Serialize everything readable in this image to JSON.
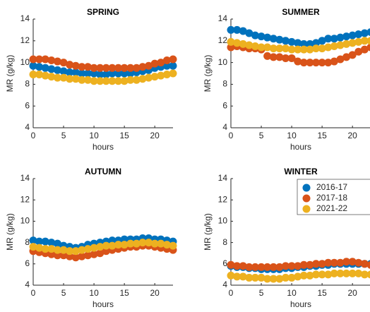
{
  "chart_data": [
    {
      "type": "scatter",
      "title": "SPRING",
      "xlabel": "hours",
      "ylabel": "MR (g/kg)",
      "x": [
        0,
        1,
        2,
        3,
        4,
        5,
        6,
        7,
        8,
        9,
        10,
        11,
        12,
        13,
        14,
        15,
        16,
        17,
        18,
        19,
        20,
        21,
        22,
        23
      ],
      "xlim": [
        0,
        23
      ],
      "ylim": [
        4,
        14
      ],
      "xticks": [
        0,
        5,
        10,
        15,
        20
      ],
      "yticks": [
        4,
        6,
        8,
        10,
        12,
        14
      ],
      "series": [
        {
          "color": "#0072BD",
          "values": [
            9.7,
            9.6,
            9.5,
            9.4,
            9.3,
            9.2,
            9.1,
            9.1,
            9.0,
            9.0,
            9.0,
            8.9,
            8.9,
            9.0,
            9.0,
            9.0,
            9.0,
            9.1,
            9.2,
            9.3,
            9.5,
            9.6,
            9.7,
            9.7
          ]
        },
        {
          "color": "#D95319",
          "values": [
            10.3,
            10.3,
            10.3,
            10.2,
            10.1,
            10.0,
            9.8,
            9.7,
            9.6,
            9.6,
            9.5,
            9.5,
            9.5,
            9.5,
            9.5,
            9.5,
            9.5,
            9.5,
            9.6,
            9.7,
            9.9,
            10.0,
            10.2,
            10.3
          ]
        },
        {
          "color": "#EDB120",
          "values": [
            8.9,
            8.9,
            8.8,
            8.7,
            8.6,
            8.6,
            8.5,
            8.5,
            8.4,
            8.4,
            8.3,
            8.3,
            8.3,
            8.3,
            8.3,
            8.3,
            8.4,
            8.4,
            8.5,
            8.6,
            8.7,
            8.8,
            8.9,
            9.0
          ]
        }
      ]
    },
    {
      "type": "scatter",
      "title": "SUMMER",
      "xlabel": "hours",
      "ylabel": "MR (g/kg)",
      "x": [
        0,
        1,
        2,
        3,
        4,
        5,
        6,
        7,
        8,
        9,
        10,
        11,
        12,
        13,
        14,
        15,
        16,
        17,
        18,
        19,
        20,
        21,
        22,
        23
      ],
      "xlim": [
        0,
        23
      ],
      "ylim": [
        4,
        14
      ],
      "xticks": [
        0,
        5,
        10,
        15,
        20
      ],
      "yticks": [
        4,
        6,
        8,
        10,
        12,
        14
      ],
      "series": [
        {
          "color": "#0072BD",
          "values": [
            13.0,
            13.0,
            12.9,
            12.7,
            12.5,
            12.4,
            12.3,
            12.2,
            12.1,
            12.0,
            11.9,
            11.8,
            11.7,
            11.7,
            11.8,
            12.0,
            12.2,
            12.2,
            12.3,
            12.4,
            12.5,
            12.6,
            12.7,
            12.8
          ]
        },
        {
          "color": "#D95319",
          "values": [
            11.4,
            11.5,
            11.4,
            11.3,
            11.3,
            11.2,
            10.6,
            10.5,
            10.5,
            10.4,
            10.4,
            10.1,
            10.0,
            10.0,
            10.0,
            10.0,
            10.0,
            10.1,
            10.3,
            10.5,
            10.7,
            11.0,
            11.2,
            11.4
          ]
        },
        {
          "color": "#EDB120",
          "values": [
            11.9,
            11.8,
            11.7,
            11.6,
            11.5,
            11.4,
            11.4,
            11.3,
            11.3,
            11.3,
            11.2,
            11.2,
            11.2,
            11.2,
            11.3,
            11.3,
            11.4,
            11.5,
            11.6,
            11.7,
            11.8,
            11.9,
            12.0,
            12.0
          ]
        }
      ]
    },
    {
      "type": "scatter",
      "title": "AUTUMN",
      "xlabel": "hours",
      "ylabel": "MR (g/kg)",
      "x": [
        0,
        1,
        2,
        3,
        4,
        5,
        6,
        7,
        8,
        9,
        10,
        11,
        12,
        13,
        14,
        15,
        16,
        17,
        18,
        19,
        20,
        21,
        22,
        23
      ],
      "xlim": [
        0,
        23
      ],
      "ylim": [
        4,
        14
      ],
      "xticks": [
        0,
        5,
        10,
        15,
        20
      ],
      "yticks": [
        4,
        6,
        8,
        10,
        12,
        14
      ],
      "series": [
        {
          "color": "#0072BD",
          "values": [
            8.2,
            8.1,
            8.1,
            8.0,
            7.9,
            7.7,
            7.6,
            7.5,
            7.6,
            7.8,
            7.9,
            8.0,
            8.1,
            8.2,
            8.2,
            8.3,
            8.3,
            8.3,
            8.4,
            8.4,
            8.3,
            8.3,
            8.2,
            8.1
          ]
        },
        {
          "color": "#D95319",
          "values": [
            7.2,
            7.1,
            7.0,
            6.9,
            6.8,
            6.8,
            6.7,
            6.6,
            6.7,
            6.8,
            6.9,
            7.0,
            7.2,
            7.3,
            7.4,
            7.5,
            7.6,
            7.6,
            7.7,
            7.7,
            7.6,
            7.5,
            7.4,
            7.3
          ]
        },
        {
          "color": "#EDB120",
          "values": [
            7.6,
            7.5,
            7.4,
            7.4,
            7.3,
            7.3,
            7.2,
            7.2,
            7.3,
            7.4,
            7.5,
            7.6,
            7.7,
            7.7,
            7.8,
            7.8,
            7.9,
            7.9,
            8.0,
            8.0,
            7.9,
            7.9,
            7.8,
            7.7
          ]
        }
      ]
    },
    {
      "type": "scatter",
      "title": "WINTER",
      "xlabel": "hours",
      "ylabel": "MR (g/kg)",
      "legend": "northeast",
      "x": [
        0,
        1,
        2,
        3,
        4,
        5,
        6,
        7,
        8,
        9,
        10,
        11,
        12,
        13,
        14,
        15,
        16,
        17,
        18,
        19,
        20,
        21,
        22,
        23
      ],
      "xlim": [
        0,
        23
      ],
      "ylim": [
        4,
        14
      ],
      "xticks": [
        0,
        5,
        10,
        15,
        20
      ],
      "yticks": [
        4,
        6,
        8,
        10,
        12,
        14
      ],
      "series": [
        {
          "name": "2016-17",
          "color": "#0072BD",
          "values": [
            5.8,
            5.7,
            5.7,
            5.6,
            5.6,
            5.5,
            5.5,
            5.5,
            5.5,
            5.6,
            5.6,
            5.7,
            5.7,
            5.8,
            5.8,
            5.9,
            5.9,
            6.0,
            6.0,
            6.0,
            6.0,
            6.0,
            6.0,
            6.0
          ]
        },
        {
          "name": "2017-18",
          "color": "#D95319",
          "values": [
            5.9,
            5.8,
            5.8,
            5.7,
            5.7,
            5.7,
            5.7,
            5.7,
            5.7,
            5.8,
            5.8,
            5.8,
            5.9,
            5.9,
            6.0,
            6.0,
            6.1,
            6.1,
            6.1,
            6.2,
            6.2,
            6.1,
            6.0,
            5.9
          ]
        },
        {
          "name": "2021-22",
          "color": "#EDB120",
          "values": [
            4.9,
            4.8,
            4.8,
            4.7,
            4.7,
            4.7,
            4.6,
            4.6,
            4.6,
            4.7,
            4.7,
            4.8,
            4.9,
            4.9,
            5.0,
            5.0,
            5.0,
            5.1,
            5.1,
            5.1,
            5.1,
            5.1,
            5.0,
            5.0
          ]
        }
      ]
    }
  ]
}
